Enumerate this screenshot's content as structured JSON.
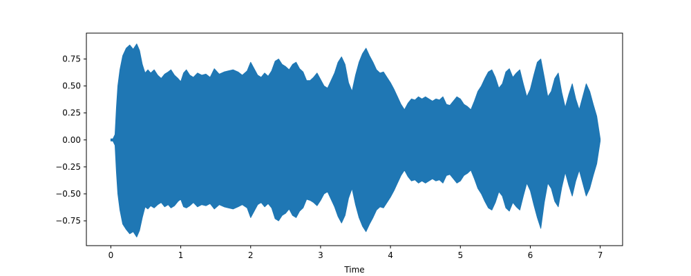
{
  "chart_data": {
    "type": "area",
    "title": "",
    "xlabel": "Time",
    "ylabel": "",
    "xlim": [
      -0.35,
      7.32
    ],
    "ylim": [
      -0.98,
      0.99
    ],
    "x_ticks": [
      0,
      1,
      2,
      3,
      4,
      5,
      6,
      7
    ],
    "x_tick_labels": [
      "0",
      "1",
      "2",
      "3",
      "4",
      "5",
      "6",
      "7"
    ],
    "y_ticks": [
      -0.75,
      -0.5,
      -0.25,
      0.0,
      0.25,
      0.5,
      0.75
    ],
    "y_tick_labels": [
      "−0.75",
      "−0.50",
      "−0.25",
      "0.00",
      "0.25",
      "0.50",
      "0.75"
    ],
    "grid": false,
    "legend": "none",
    "series": [
      {
        "color": "#1f77b4",
        "envelope": {
          "t": [
            0.0,
            0.03,
            0.06,
            0.08,
            0.1,
            0.13,
            0.17,
            0.22,
            0.27,
            0.32,
            0.37,
            0.41,
            0.45,
            0.49,
            0.53,
            0.57,
            0.62,
            0.67,
            0.72,
            0.77,
            0.82,
            0.86,
            0.91,
            0.96,
            1.0,
            1.04,
            1.08,
            1.13,
            1.18,
            1.24,
            1.3,
            1.36,
            1.42,
            1.48,
            1.55,
            1.62,
            1.68,
            1.75,
            1.82,
            1.88,
            1.95,
            2.0,
            2.05,
            2.1,
            2.15,
            2.2,
            2.25,
            2.3,
            2.35,
            2.4,
            2.45,
            2.5,
            2.55,
            2.6,
            2.65,
            2.7,
            2.75,
            2.8,
            2.85,
            2.9,
            2.95,
            3.0,
            3.05,
            3.1,
            3.15,
            3.2,
            3.25,
            3.3,
            3.35,
            3.4,
            3.45,
            3.5,
            3.55,
            3.6,
            3.65,
            3.7,
            3.75,
            3.8,
            3.85,
            3.9,
            3.95,
            4.0,
            4.05,
            4.1,
            4.15,
            4.2,
            4.25,
            4.3,
            4.35,
            4.4,
            4.45,
            4.5,
            4.55,
            4.6,
            4.65,
            4.7,
            4.75,
            4.8,
            4.85,
            4.9,
            4.95,
            5.0,
            5.05,
            5.1,
            5.15,
            5.2,
            5.25,
            5.3,
            5.35,
            5.4,
            5.45,
            5.5,
            5.55,
            5.6,
            5.65,
            5.7,
            5.75,
            5.8,
            5.85,
            5.9,
            5.95,
            6.0,
            6.05,
            6.1,
            6.15,
            6.2,
            6.25,
            6.3,
            6.35,
            6.4,
            6.45,
            6.5,
            6.55,
            6.6,
            6.65,
            6.7,
            6.75,
            6.8,
            6.85,
            6.9,
            6.95,
            7.0
          ],
          "upper": [
            0.01,
            0.01,
            0.05,
            0.3,
            0.5,
            0.65,
            0.78,
            0.85,
            0.88,
            0.84,
            0.89,
            0.83,
            0.7,
            0.62,
            0.65,
            0.62,
            0.65,
            0.6,
            0.57,
            0.61,
            0.63,
            0.65,
            0.6,
            0.57,
            0.54,
            0.62,
            0.65,
            0.6,
            0.58,
            0.62,
            0.6,
            0.61,
            0.58,
            0.66,
            0.61,
            0.63,
            0.64,
            0.65,
            0.63,
            0.6,
            0.64,
            0.72,
            0.66,
            0.6,
            0.58,
            0.62,
            0.59,
            0.64,
            0.73,
            0.75,
            0.7,
            0.68,
            0.65,
            0.7,
            0.72,
            0.66,
            0.63,
            0.55,
            0.55,
            0.58,
            0.62,
            0.56,
            0.5,
            0.48,
            0.55,
            0.62,
            0.72,
            0.77,
            0.7,
            0.53,
            0.45,
            0.6,
            0.72,
            0.8,
            0.85,
            0.78,
            0.72,
            0.65,
            0.62,
            0.63,
            0.58,
            0.53,
            0.47,
            0.4,
            0.33,
            0.28,
            0.34,
            0.38,
            0.37,
            0.4,
            0.38,
            0.4,
            0.38,
            0.36,
            0.38,
            0.37,
            0.4,
            0.33,
            0.32,
            0.36,
            0.4,
            0.38,
            0.33,
            0.31,
            0.28,
            0.36,
            0.45,
            0.5,
            0.57,
            0.63,
            0.65,
            0.58,
            0.48,
            0.52,
            0.63,
            0.66,
            0.58,
            0.62,
            0.65,
            0.52,
            0.4,
            0.47,
            0.6,
            0.72,
            0.75,
            0.58,
            0.4,
            0.45,
            0.57,
            0.62,
            0.44,
            0.3,
            0.42,
            0.52,
            0.38,
            0.28,
            0.4,
            0.52,
            0.45,
            0.33,
            0.22,
            0.01
          ],
          "lower": [
            -0.01,
            -0.01,
            -0.05,
            -0.3,
            -0.5,
            -0.65,
            -0.78,
            -0.83,
            -0.87,
            -0.85,
            -0.9,
            -0.84,
            -0.72,
            -0.62,
            -0.64,
            -0.61,
            -0.63,
            -0.6,
            -0.58,
            -0.62,
            -0.6,
            -0.63,
            -0.61,
            -0.57,
            -0.55,
            -0.62,
            -0.63,
            -0.61,
            -0.58,
            -0.62,
            -0.6,
            -0.61,
            -0.59,
            -0.64,
            -0.6,
            -0.62,
            -0.63,
            -0.64,
            -0.62,
            -0.6,
            -0.63,
            -0.72,
            -0.66,
            -0.6,
            -0.58,
            -0.62,
            -0.59,
            -0.63,
            -0.73,
            -0.75,
            -0.7,
            -0.68,
            -0.64,
            -0.7,
            -0.72,
            -0.66,
            -0.63,
            -0.55,
            -0.56,
            -0.58,
            -0.61,
            -0.56,
            -0.5,
            -0.48,
            -0.55,
            -0.62,
            -0.71,
            -0.77,
            -0.7,
            -0.54,
            -0.45,
            -0.6,
            -0.72,
            -0.8,
            -0.85,
            -0.78,
            -0.72,
            -0.65,
            -0.62,
            -0.63,
            -0.58,
            -0.53,
            -0.47,
            -0.4,
            -0.33,
            -0.28,
            -0.34,
            -0.38,
            -0.37,
            -0.4,
            -0.38,
            -0.4,
            -0.38,
            -0.36,
            -0.38,
            -0.37,
            -0.4,
            -0.33,
            -0.32,
            -0.36,
            -0.4,
            -0.38,
            -0.33,
            -0.31,
            -0.28,
            -0.36,
            -0.45,
            -0.5,
            -0.57,
            -0.63,
            -0.65,
            -0.58,
            -0.48,
            -0.52,
            -0.63,
            -0.66,
            -0.58,
            -0.62,
            -0.65,
            -0.52,
            -0.4,
            -0.47,
            -0.6,
            -0.72,
            -0.82,
            -0.58,
            -0.4,
            -0.45,
            -0.57,
            -0.62,
            -0.44,
            -0.3,
            -0.42,
            -0.52,
            -0.38,
            -0.28,
            -0.4,
            -0.52,
            -0.45,
            -0.33,
            -0.22,
            -0.01
          ]
        }
      }
    ]
  }
}
